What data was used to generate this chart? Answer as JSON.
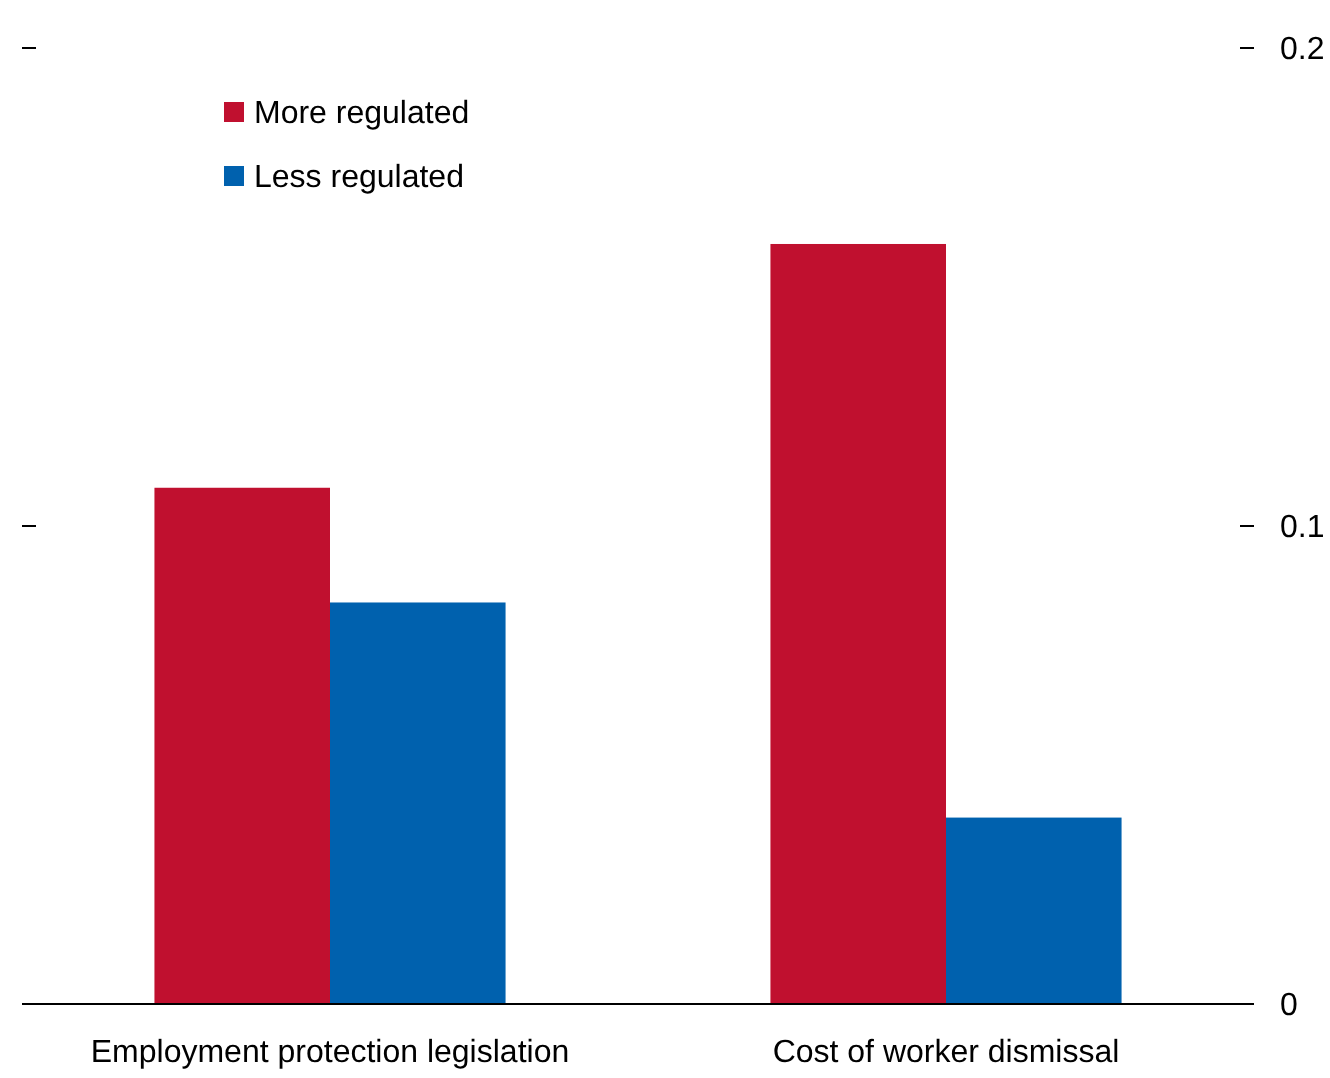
{
  "chart_data": {
    "type": "bar",
    "categories": [
      "Employment protection legislation",
      "Cost of worker dismissal"
    ],
    "series": [
      {
        "name": "More regulated",
        "color": "#c0102f",
        "values": [
          0.108,
          0.159
        ]
      },
      {
        "name": "Less regulated",
        "color": "#0061ae",
        "values": [
          0.084,
          0.039
        ]
      }
    ],
    "ylim": [
      0,
      0.2
    ],
    "yticks": [
      0,
      0.1,
      0.2
    ],
    "legend": "top left",
    "grid": false
  }
}
